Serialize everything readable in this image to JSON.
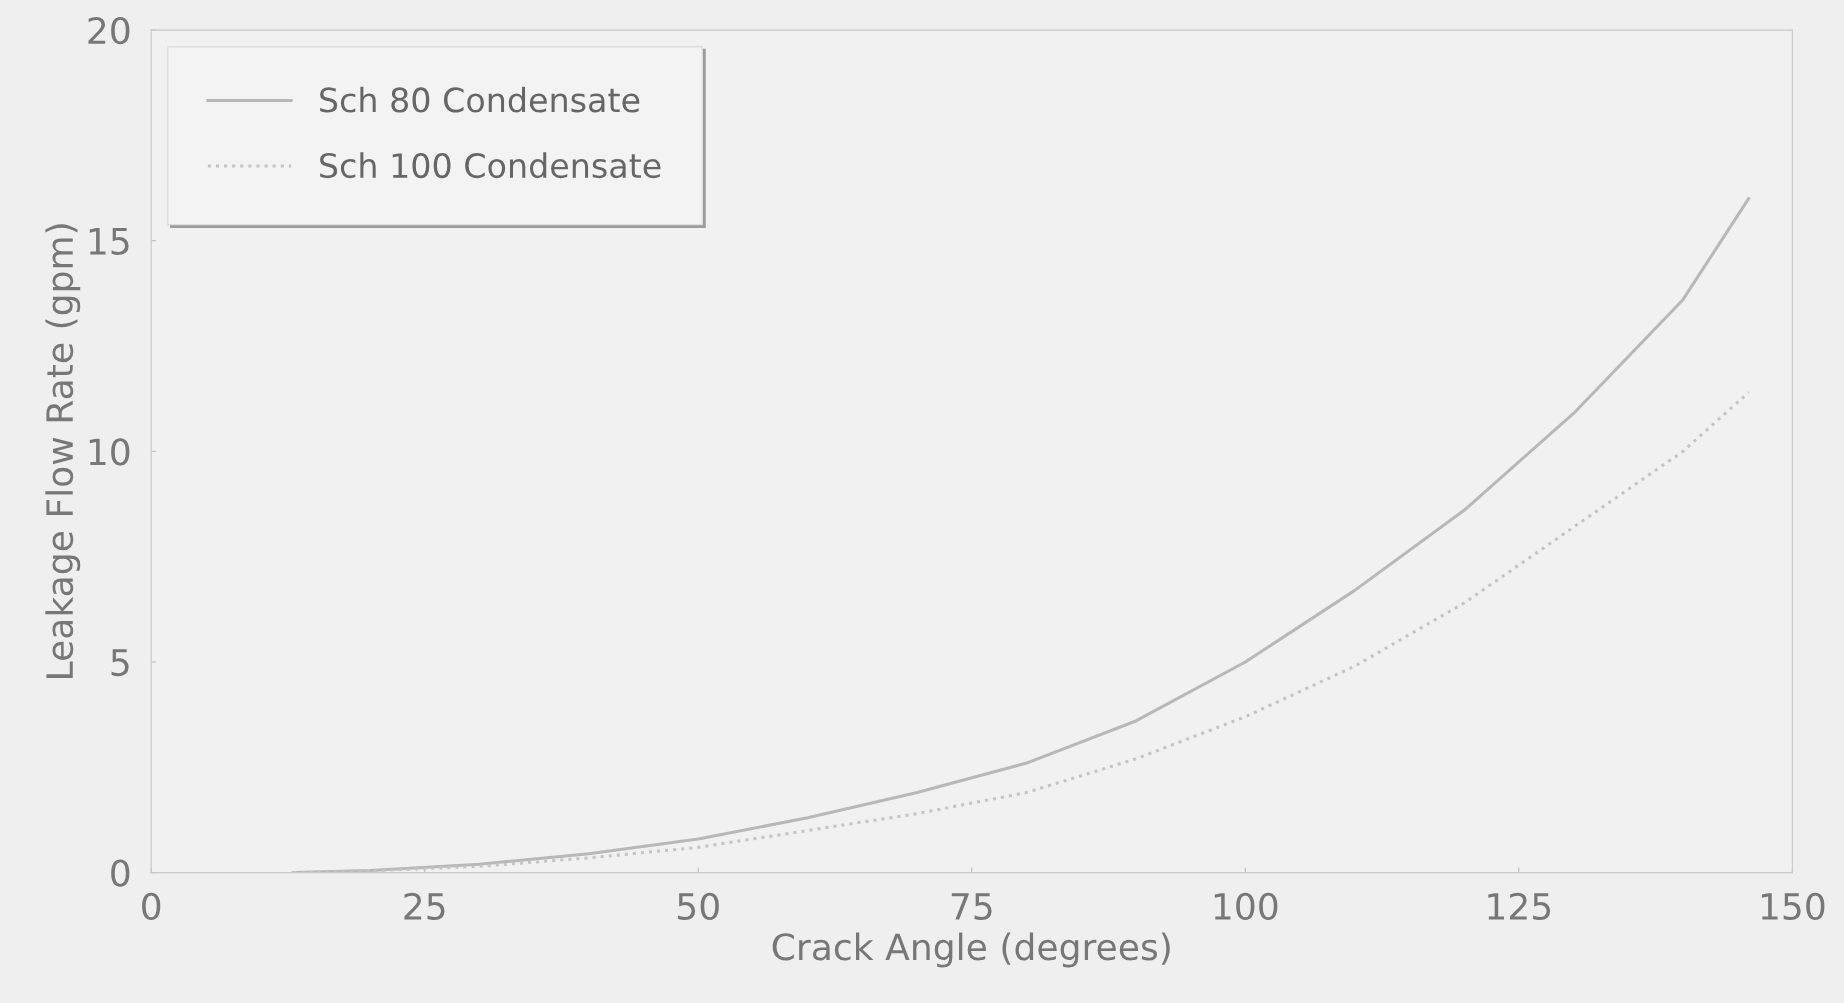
{
  "chart_data": {
    "type": "line",
    "xlabel": "Crack Angle (degrees)",
    "ylabel": "Leakage Flow Rate (gpm)",
    "xlim": [
      0,
      150
    ],
    "xticks": [
      0,
      25,
      50,
      75,
      100,
      125,
      150
    ],
    "ylim": [
      0,
      20
    ],
    "yticks": [
      0,
      5,
      10,
      15,
      20
    ],
    "grid": false,
    "legend": "top left",
    "marker": "none",
    "series": [
      {
        "name": "Sch 80 Condensate",
        "color": "#b8b8b8",
        "line_style": "solid",
        "x": [
          13,
          20,
          30,
          40,
          50,
          60,
          70,
          80,
          90,
          100,
          110,
          120,
          130,
          140,
          146
        ],
        "values": [
          0,
          0.05,
          0.2,
          0.45,
          0.8,
          1.3,
          1.9,
          2.6,
          3.6,
          5.0,
          6.7,
          8.6,
          10.9,
          13.6,
          16.0
        ]
      },
      {
        "name": "Sch 100 Condensate",
        "color": "#c4c4c4",
        "line_style": "dotted",
        "x": [
          13,
          20,
          30,
          40,
          50,
          60,
          70,
          80,
          90,
          100,
          110,
          120,
          130,
          140,
          146
        ],
        "values": [
          0,
          0.04,
          0.15,
          0.35,
          0.6,
          1.0,
          1.4,
          1.9,
          2.7,
          3.7,
          4.9,
          6.4,
          8.2,
          10.0,
          11.4
        ]
      }
    ]
  }
}
